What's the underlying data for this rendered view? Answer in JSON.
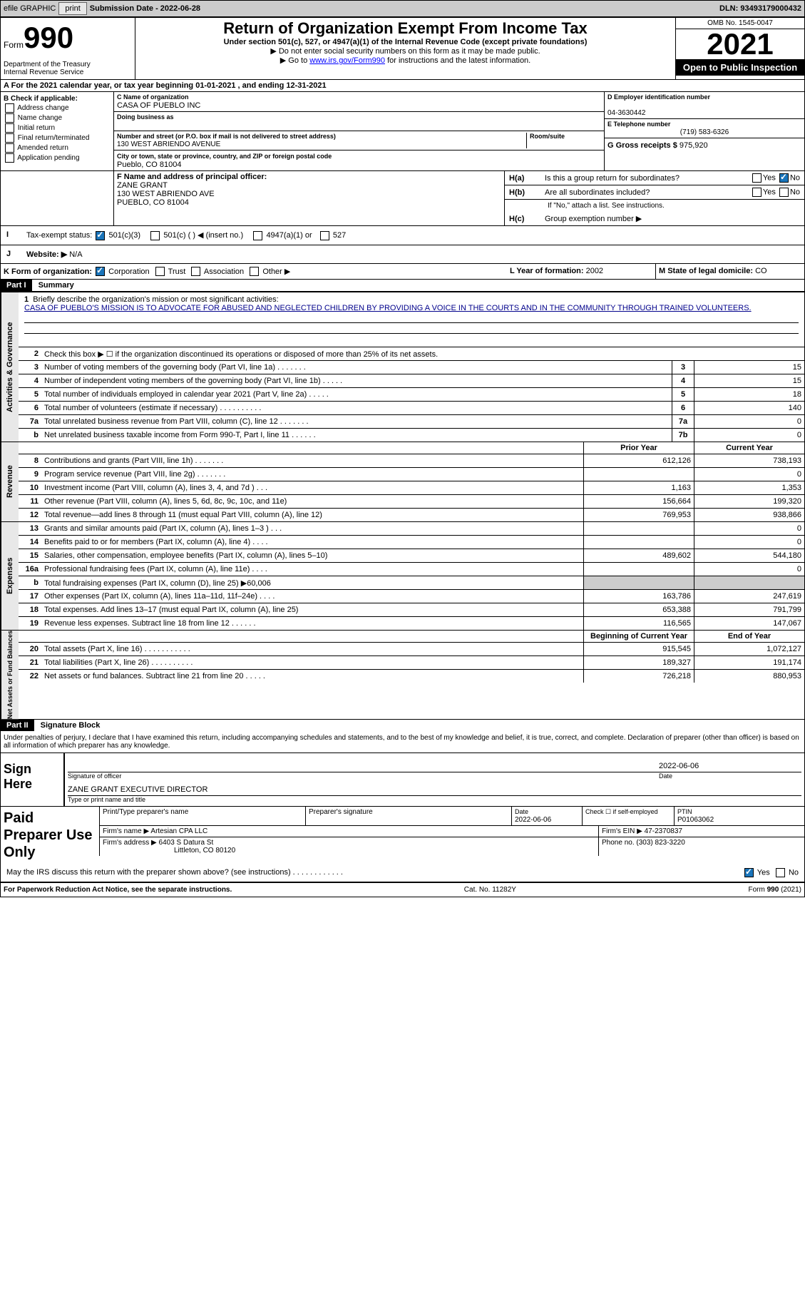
{
  "topbar": {
    "efile_label": "efile GRAPHIC",
    "print_label": "print",
    "submission_label": "Submission Date - 2022-06-28",
    "dln": "DLN: 93493179000432"
  },
  "header": {
    "form_word": "Form",
    "form_number": "990",
    "dept": "Department of the Treasury\nInternal Revenue Service",
    "title": "Return of Organization Exempt From Income Tax",
    "sub1": "Under section 501(c), 527, or 4947(a)(1) of the Internal Revenue Code (except private foundations)",
    "sub2": "▶ Do not enter social security numbers on this form as it may be made public.",
    "sub3_pre": "▶ Go to ",
    "sub3_link": "www.irs.gov/Form990",
    "sub3_post": " for instructions and the latest information.",
    "omb": "OMB No. 1545-0047",
    "year": "2021",
    "open": "Open to Public Inspection"
  },
  "line_a": "For the 2021 calendar year, or tax year beginning 01-01-2021    , and ending 12-31-2021",
  "section_b": {
    "header": "B Check if applicable:",
    "opts": [
      "Address change",
      "Name change",
      "Initial return",
      "Final return/terminated",
      "Amended return",
      "Application pending"
    ]
  },
  "section_c": {
    "name_label": "C Name of organization",
    "name": "CASA OF PUEBLO INC",
    "dba_label": "Doing business as",
    "dba": "",
    "addr_label": "Number and street (or P.O. box if mail is not delivered to street address)",
    "room_label": "Room/suite",
    "addr": "130 WEST ABRIENDO AVENUE",
    "city_label": "City or town, state or province, country, and ZIP or foreign postal code",
    "city": "Pueblo, CO  81004"
  },
  "section_d": {
    "ein_label": "D Employer identification number",
    "ein": "04-3630442",
    "tel_label": "E Telephone number",
    "tel": "(719) 583-6326",
    "gross_label": "G Gross receipts $",
    "gross": "975,920"
  },
  "section_f": {
    "label": "F Name and address of principal officer:",
    "name": "ZANE GRANT",
    "addr1": "130 WEST ABRIENDO AVE",
    "addr2": "PUEBLO, CO  81004"
  },
  "section_h": {
    "a": "Is this a group return for subordinates?",
    "b": "Are all subordinates included?",
    "b_note": "If \"No,\" attach a list. See instructions.",
    "c": "Group exemption number ▶",
    "ha": "H(a)",
    "hb": "H(b)",
    "hc": "H(c)"
  },
  "section_i": {
    "label": "Tax-exempt status:",
    "opts": [
      "501(c)(3)",
      "501(c) (  ) ◀ (insert no.)",
      "4947(a)(1) or",
      "527"
    ]
  },
  "section_j": {
    "label": "Website: ▶",
    "val": "N/A"
  },
  "section_k": {
    "label": "K Form of organization:",
    "opts": [
      "Corporation",
      "Trust",
      "Association",
      "Other ▶"
    ]
  },
  "section_l": {
    "label": "L Year of formation:",
    "val": "2002"
  },
  "section_m": {
    "label": "M State of legal domicile:",
    "val": "CO"
  },
  "part1": {
    "header": "Part I",
    "title": "Summary",
    "line1_label": "Briefly describe the organization's mission or most significant activities:",
    "mission": "CASA OF PUEBLO'S MISSION IS TO ADVOCATE FOR ABUSED AND NEGLECTED CHILDREN BY PROVIDING A VOICE IN THE COURTS AND IN THE COMMUNITY THROUGH TRAINED VOLUNTEERS.",
    "line2": "Check this box ▶ ☐ if the organization discontinued its operations or disposed of more than 25% of its net assets.",
    "tabs": {
      "gov": "Activities & Governance",
      "rev": "Revenue",
      "exp": "Expenses",
      "net": "Net Assets or Fund Balances"
    },
    "gov_lines": [
      {
        "n": "3",
        "t": "Number of voting members of the governing body (Part VI, line 1a)  .    .    .    .    .    .    .",
        "box": "3",
        "v": "15"
      },
      {
        "n": "4",
        "t": "Number of independent voting members of the governing body (Part VI, line 1b)  .    .    .    .    .",
        "box": "4",
        "v": "15"
      },
      {
        "n": "5",
        "t": "Total number of individuals employed in calendar year 2021 (Part V, line 2a)  .    .    .    .    .",
        "box": "5",
        "v": "18"
      },
      {
        "n": "6",
        "t": "Total number of volunteers (estimate if necessary)    .    .    .    .    .    .    .    .    .    .",
        "box": "6",
        "v": "140"
      },
      {
        "n": "7a",
        "t": "Total unrelated business revenue from Part VIII, column (C), line 12  .    .    .    .    .    .    .",
        "box": "7a",
        "v": "0"
      },
      {
        "n": "b",
        "t": "Net unrelated business taxable income from Form 990-T, Part I, line 11  .    .    .    .    .    .",
        "box": "7b",
        "v": "0"
      }
    ],
    "col_prior": "Prior Year",
    "col_current": "Current Year",
    "rev_lines": [
      {
        "n": "8",
        "t": "Contributions and grants (Part VIII, line 1h)  .    .    .    .    .    .    .",
        "p": "612,126",
        "c": "738,193"
      },
      {
        "n": "9",
        "t": "Program service revenue (Part VIII, line 2g)  .    .    .    .    .    .    .",
        "p": "",
        "c": "0"
      },
      {
        "n": "10",
        "t": "Investment income (Part VIII, column (A), lines 3, 4, and 7d )  .    .    .",
        "p": "1,163",
        "c": "1,353"
      },
      {
        "n": "11",
        "t": "Other revenue (Part VIII, column (A), lines 5, 6d, 8c, 9c, 10c, and 11e)",
        "p": "156,664",
        "c": "199,320"
      },
      {
        "n": "12",
        "t": "Total revenue—add lines 8 through 11 (must equal Part VIII, column (A), line 12)",
        "p": "769,953",
        "c": "938,866"
      }
    ],
    "exp_lines": [
      {
        "n": "13",
        "t": "Grants and similar amounts paid (Part IX, column (A), lines 1–3 )  .    .    .",
        "p": "",
        "c": "0"
      },
      {
        "n": "14",
        "t": "Benefits paid to or for members (Part IX, column (A), line 4)  .    .    .    .",
        "p": "",
        "c": "0"
      },
      {
        "n": "15",
        "t": "Salaries, other compensation, employee benefits (Part IX, column (A), lines 5–10)",
        "p": "489,602",
        "c": "544,180"
      },
      {
        "n": "16a",
        "t": "Professional fundraising fees (Part IX, column (A), line 11e)  .    .    .    .",
        "p": "",
        "c": "0"
      },
      {
        "n": "b",
        "t": "Total fundraising expenses (Part IX, column (D), line 25) ▶60,006",
        "p": "shade",
        "c": "shade"
      },
      {
        "n": "17",
        "t": "Other expenses (Part IX, column (A), lines 11a–11d, 11f–24e)  .    .    .    .",
        "p": "163,786",
        "c": "247,619"
      },
      {
        "n": "18",
        "t": "Total expenses. Add lines 13–17 (must equal Part IX, column (A), line 25)",
        "p": "653,388",
        "c": "791,799"
      },
      {
        "n": "19",
        "t": "Revenue less expenses. Subtract line 18 from line 12  .    .    .    .    .    .",
        "p": "116,565",
        "c": "147,067"
      }
    ],
    "col_begin": "Beginning of Current Year",
    "col_end": "End of Year",
    "net_lines": [
      {
        "n": "20",
        "t": "Total assets (Part X, line 16)  .    .    .    .    .    .    .    .    .    .    .",
        "p": "915,545",
        "c": "1,072,127"
      },
      {
        "n": "21",
        "t": "Total liabilities (Part X, line 26)  .    .    .    .    .    .    .    .    .    .",
        "p": "189,327",
        "c": "191,174"
      },
      {
        "n": "22",
        "t": "Net assets or fund balances. Subtract line 21 from line 20  .    .    .    .    .",
        "p": "726,218",
        "c": "880,953"
      }
    ]
  },
  "part2": {
    "header": "Part II",
    "title": "Signature Block",
    "penalties": "Under penalties of perjury, I declare that I have examined this return, including accompanying schedules and statements, and to the best of my knowledge and belief, it is true, correct, and complete. Declaration of preparer (other than officer) is based on all information of which preparer has any knowledge.",
    "sign_here": "Sign Here",
    "sig_officer": "Signature of officer",
    "sig_date": "2022-06-06",
    "date_label": "Date",
    "name_title": "ZANE GRANT EXECUTIVE DIRECTOR",
    "name_title_label": "Type or print name and title",
    "paid": "Paid Preparer Use Only",
    "prep_name_label": "Print/Type preparer's name",
    "prep_sig_label": "Preparer's signature",
    "prep_date_label": "Date",
    "prep_date": "2022-06-06",
    "check_self": "Check ☐ if self-employed",
    "ptin_label": "PTIN",
    "ptin": "P01063062",
    "firm_name_label": "Firm's name    ▶",
    "firm_name": "Artesian CPA LLC",
    "firm_ein_label": "Firm's EIN ▶",
    "firm_ein": "47-2370837",
    "firm_addr_label": "Firm's address ▶",
    "firm_addr": "6403 S Datura St",
    "firm_addr2": "Littleton, CO  80120",
    "phone_label": "Phone no.",
    "phone": "(303) 823-3220",
    "may_irs": "May the IRS discuss this return with the preparer shown above? (see instructions)  .    .    .    .    .    .    .    .    .    .    .    .",
    "yes": "Yes",
    "no": "No"
  },
  "footer": {
    "left": "For Paperwork Reduction Act Notice, see the separate instructions.",
    "center": "Cat. No. 11282Y",
    "right": "Form 990 (2021)"
  }
}
